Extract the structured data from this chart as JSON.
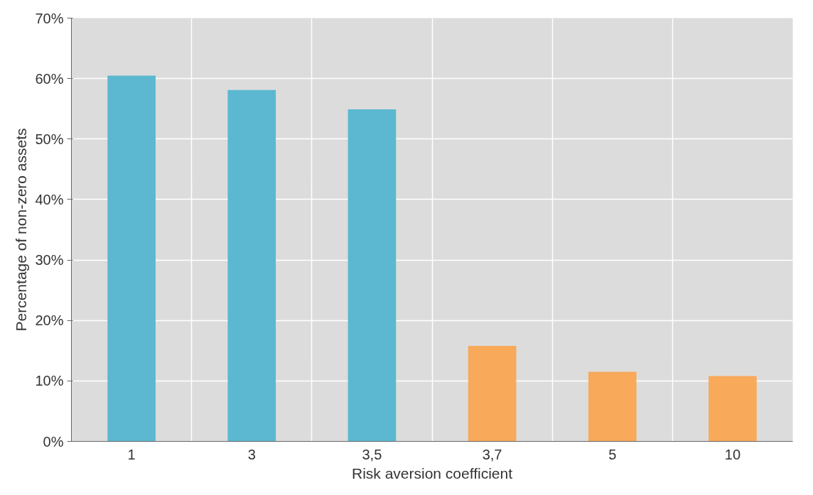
{
  "chart_data": {
    "type": "bar",
    "xlabel": "Risk aversion coefficient",
    "ylabel": "Percentage of non-zero assets",
    "categories": [
      "1",
      "3",
      "3,5",
      "3,7",
      "5",
      "10"
    ],
    "values": [
      60.5,
      58.1,
      54.9,
      15.8,
      11.5,
      10.8
    ],
    "colors": [
      "#5bb8d0",
      "#5bb8d0",
      "#5bb8d0",
      "#f8a95a",
      "#f8a95a",
      "#f8a95a"
    ],
    "ylim": [
      0,
      70
    ],
    "yticks": [
      {
        "value": 0,
        "label": "0%"
      },
      {
        "value": 10,
        "label": "10%"
      },
      {
        "value": 20,
        "label": "20%"
      },
      {
        "value": 30,
        "label": "30%"
      },
      {
        "value": 40,
        "label": "40%"
      },
      {
        "value": 50,
        "label": "50%"
      },
      {
        "value": 60,
        "label": "60%"
      },
      {
        "value": 70,
        "label": "70%"
      }
    ],
    "grid": true
  }
}
